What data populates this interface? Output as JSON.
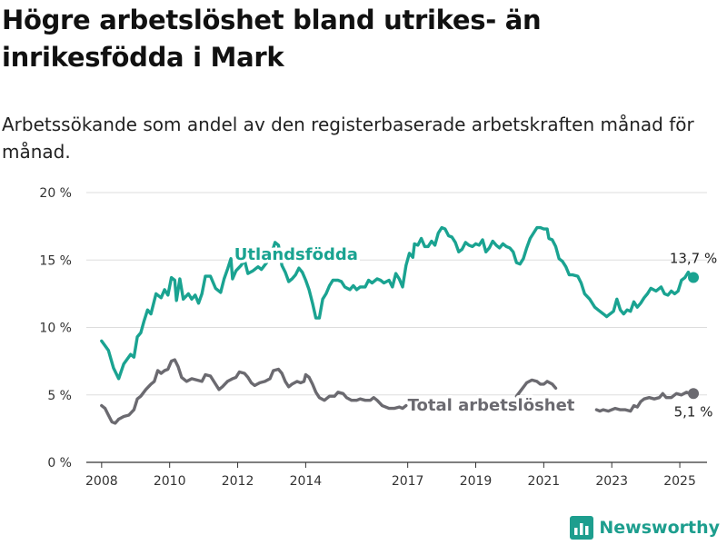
{
  "title": "Högre arbetslöshet bland utrikes- än inrikesfödda i Mark",
  "subtitle": "Arbetssökande som andel av den registerbaserade arbetskraften månad för månad.",
  "brand": "Newsworthy",
  "colors": {
    "utlandsfodda": "#1aa391",
    "total": "#6b6a70",
    "grid": "#dddddd"
  },
  "chart_data": {
    "type": "line",
    "ylim": [
      0,
      20
    ],
    "yticks": [
      {
        "value": 0,
        "label": "0 %"
      },
      {
        "value": 5,
        "label": "5 %"
      },
      {
        "value": 10,
        "label": "10 %"
      },
      {
        "value": 15,
        "label": "15 %"
      },
      {
        "value": 20,
        "label": "20 %"
      }
    ],
    "xticks": [
      {
        "value": 2008,
        "label": "2008"
      },
      {
        "value": 2010,
        "label": "2010"
      },
      {
        "value": 2012,
        "label": "2012"
      },
      {
        "value": 2014,
        "label": "2014"
      },
      {
        "value": 2017,
        "label": "2017"
      },
      {
        "value": 2019,
        "label": "2019"
      },
      {
        "value": 2021,
        "label": "2021"
      },
      {
        "value": 2023,
        "label": "2023"
      },
      {
        "value": 2025,
        "label": "2025"
      }
    ],
    "series": [
      {
        "name": "Utlandsfödda",
        "end_label": "13,7 %",
        "points": [
          [
            2008.0,
            9.0
          ],
          [
            2008.2,
            8.3
          ],
          [
            2008.35,
            7.0
          ],
          [
            2008.5,
            6.2
          ],
          [
            2008.65,
            7.3
          ],
          [
            2008.85,
            8.0
          ],
          [
            2008.95,
            7.8
          ],
          [
            2009.05,
            9.3
          ],
          [
            2009.15,
            9.6
          ],
          [
            2009.25,
            10.5
          ],
          [
            2009.35,
            11.3
          ],
          [
            2009.45,
            11.0
          ],
          [
            2009.6,
            12.5
          ],
          [
            2009.75,
            12.2
          ],
          [
            2009.85,
            12.8
          ],
          [
            2009.95,
            12.4
          ],
          [
            2010.05,
            13.7
          ],
          [
            2010.15,
            13.5
          ],
          [
            2010.2,
            12.0
          ],
          [
            2010.3,
            13.6
          ],
          [
            2010.4,
            12.1
          ],
          [
            2010.55,
            12.5
          ],
          [
            2010.65,
            12.1
          ],
          [
            2010.75,
            12.4
          ],
          [
            2010.85,
            11.8
          ],
          [
            2010.95,
            12.5
          ],
          [
            2011.05,
            13.8
          ],
          [
            2011.2,
            13.8
          ],
          [
            2011.35,
            12.9
          ],
          [
            2011.5,
            12.6
          ],
          [
            2011.6,
            13.6
          ],
          [
            2011.7,
            14.3
          ],
          [
            2011.8,
            15.1
          ],
          [
            2011.85,
            13.6
          ],
          [
            2011.95,
            14.2
          ],
          [
            2012.1,
            14.6
          ],
          [
            2012.2,
            15.0
          ],
          [
            2012.3,
            14.0
          ],
          [
            2012.45,
            14.2
          ],
          [
            2012.6,
            14.5
          ],
          [
            2012.7,
            14.3
          ],
          [
            2012.85,
            14.8
          ],
          [
            2013.0,
            15.5
          ],
          [
            2013.1,
            16.3
          ],
          [
            2013.2,
            16.1
          ],
          [
            2013.3,
            14.6
          ],
          [
            2013.4,
            14.1
          ],
          [
            2013.5,
            13.4
          ],
          [
            2013.6,
            13.6
          ],
          [
            2013.7,
            13.9
          ],
          [
            2013.8,
            14.4
          ],
          [
            2013.9,
            14.1
          ],
          [
            2014.0,
            13.5
          ],
          [
            2014.1,
            12.8
          ],
          [
            2014.2,
            11.8
          ],
          [
            2014.3,
            10.7
          ],
          [
            2014.4,
            10.7
          ],
          [
            2014.5,
            12.1
          ],
          [
            2014.6,
            12.5
          ],
          [
            2014.7,
            13.1
          ],
          [
            2014.8,
            13.5
          ],
          [
            2014.95,
            13.5
          ],
          [
            2015.05,
            13.4
          ],
          [
            2015.15,
            13.0
          ],
          [
            2015.3,
            12.8
          ],
          [
            2015.4,
            13.1
          ],
          [
            2015.5,
            12.8
          ],
          [
            2015.6,
            13.0
          ],
          [
            2015.75,
            13.0
          ],
          [
            2015.85,
            13.5
          ],
          [
            2015.95,
            13.3
          ],
          [
            2016.1,
            13.6
          ],
          [
            2016.2,
            13.5
          ],
          [
            2016.3,
            13.3
          ],
          [
            2016.45,
            13.5
          ],
          [
            2016.55,
            13.0
          ],
          [
            2016.65,
            14.0
          ],
          [
            2016.75,
            13.6
          ],
          [
            2016.85,
            13.0
          ],
          [
            2016.95,
            14.6
          ],
          [
            2017.05,
            15.5
          ],
          [
            2017.15,
            15.2
          ],
          [
            2017.2,
            16.2
          ],
          [
            2017.3,
            16.1
          ],
          [
            2017.4,
            16.6
          ],
          [
            2017.5,
            16.0
          ],
          [
            2017.6,
            16.0
          ],
          [
            2017.7,
            16.4
          ],
          [
            2017.8,
            16.1
          ],
          [
            2017.9,
            17.0
          ],
          [
            2018.0,
            17.4
          ],
          [
            2018.1,
            17.3
          ],
          [
            2018.2,
            16.8
          ],
          [
            2018.3,
            16.7
          ],
          [
            2018.4,
            16.3
          ],
          [
            2018.5,
            15.6
          ],
          [
            2018.6,
            15.8
          ],
          [
            2018.7,
            16.3
          ],
          [
            2018.8,
            16.1
          ],
          [
            2018.9,
            16.0
          ],
          [
            2019.0,
            16.2
          ],
          [
            2019.1,
            16.1
          ],
          [
            2019.2,
            16.5
          ],
          [
            2019.3,
            15.6
          ],
          [
            2019.4,
            15.9
          ],
          [
            2019.5,
            16.4
          ],
          [
            2019.6,
            16.1
          ],
          [
            2019.7,
            15.9
          ],
          [
            2019.8,
            16.2
          ],
          [
            2019.9,
            16.0
          ],
          [
            2020.0,
            15.9
          ],
          [
            2020.1,
            15.6
          ],
          [
            2020.2,
            14.8
          ],
          [
            2020.3,
            14.7
          ],
          [
            2020.4,
            15.1
          ],
          [
            2020.5,
            15.9
          ],
          [
            2020.6,
            16.6
          ],
          [
            2020.7,
            17.0
          ],
          [
            2020.8,
            17.4
          ],
          [
            2020.9,
            17.4
          ],
          [
            2021.0,
            17.3
          ],
          [
            2021.1,
            17.3
          ],
          [
            2021.15,
            16.6
          ],
          [
            2021.25,
            16.5
          ],
          [
            2021.35,
            16.0
          ],
          [
            2021.45,
            15.1
          ],
          [
            2021.55,
            14.9
          ],
          [
            2021.65,
            14.5
          ],
          [
            2021.75,
            13.9
          ],
          [
            2021.85,
            13.9
          ],
          [
            2022.0,
            13.8
          ],
          [
            2022.1,
            13.3
          ],
          [
            2022.2,
            12.5
          ],
          [
            2022.35,
            12.1
          ],
          [
            2022.5,
            11.5
          ],
          [
            2022.6,
            11.3
          ],
          [
            2022.75,
            11.0
          ],
          [
            2022.85,
            10.8
          ],
          [
            2022.95,
            11.0
          ],
          [
            2023.05,
            11.2
          ],
          [
            2023.15,
            12.1
          ],
          [
            2023.25,
            11.3
          ],
          [
            2023.35,
            11.0
          ],
          [
            2023.45,
            11.3
          ],
          [
            2023.55,
            11.2
          ],
          [
            2023.65,
            11.9
          ],
          [
            2023.75,
            11.5
          ],
          [
            2023.85,
            11.8
          ],
          [
            2023.95,
            12.2
          ],
          [
            2024.05,
            12.5
          ],
          [
            2024.15,
            12.9
          ],
          [
            2024.3,
            12.7
          ],
          [
            2024.45,
            13.0
          ],
          [
            2024.55,
            12.5
          ],
          [
            2024.65,
            12.4
          ],
          [
            2024.75,
            12.7
          ],
          [
            2024.85,
            12.5
          ],
          [
            2024.95,
            12.7
          ],
          [
            2025.05,
            13.5
          ],
          [
            2025.15,
            13.7
          ],
          [
            2025.25,
            14.1
          ],
          [
            2025.3,
            13.8
          ],
          [
            2025.4,
            13.7
          ]
        ]
      },
      {
        "name": "Total arbetslöshet",
        "end_label": "5,1 %",
        "points": [
          [
            2008.0,
            4.2
          ],
          [
            2008.1,
            4.0
          ],
          [
            2008.2,
            3.5
          ],
          [
            2008.3,
            3.0
          ],
          [
            2008.4,
            2.9
          ],
          [
            2008.5,
            3.2
          ],
          [
            2008.65,
            3.4
          ],
          [
            2008.8,
            3.5
          ],
          [
            2008.95,
            3.9
          ],
          [
            2009.05,
            4.7
          ],
          [
            2009.15,
            4.9
          ],
          [
            2009.3,
            5.4
          ],
          [
            2009.45,
            5.8
          ],
          [
            2009.55,
            6.0
          ],
          [
            2009.65,
            6.8
          ],
          [
            2009.75,
            6.6
          ],
          [
            2009.85,
            6.8
          ],
          [
            2009.95,
            6.9
          ],
          [
            2010.05,
            7.5
          ],
          [
            2010.15,
            7.6
          ],
          [
            2010.25,
            7.1
          ],
          [
            2010.35,
            6.3
          ],
          [
            2010.5,
            6.0
          ],
          [
            2010.65,
            6.2
          ],
          [
            2010.8,
            6.1
          ],
          [
            2010.95,
            6.0
          ],
          [
            2011.05,
            6.5
          ],
          [
            2011.2,
            6.4
          ],
          [
            2011.35,
            5.8
          ],
          [
            2011.45,
            5.4
          ],
          [
            2011.55,
            5.6
          ],
          [
            2011.7,
            6.0
          ],
          [
            2011.85,
            6.2
          ],
          [
            2011.95,
            6.3
          ],
          [
            2012.05,
            6.7
          ],
          [
            2012.2,
            6.6
          ],
          [
            2012.3,
            6.3
          ],
          [
            2012.4,
            5.9
          ],
          [
            2012.5,
            5.7
          ],
          [
            2012.65,
            5.9
          ],
          [
            2012.8,
            6.0
          ],
          [
            2012.95,
            6.2
          ],
          [
            2013.05,
            6.8
          ],
          [
            2013.2,
            6.9
          ],
          [
            2013.3,
            6.6
          ],
          [
            2013.4,
            6.0
          ],
          [
            2013.5,
            5.6
          ],
          [
            2013.6,
            5.8
          ],
          [
            2013.75,
            6.0
          ],
          [
            2013.85,
            5.9
          ],
          [
            2013.95,
            6.0
          ],
          [
            2014.0,
            6.5
          ],
          [
            2014.1,
            6.3
          ],
          [
            2014.2,
            5.8
          ],
          [
            2014.3,
            5.2
          ],
          [
            2014.4,
            4.8
          ],
          [
            2014.55,
            4.6
          ],
          [
            2014.7,
            4.9
          ],
          [
            2014.85,
            4.9
          ],
          [
            2014.95,
            5.2
          ],
          [
            2015.1,
            5.1
          ],
          [
            2015.2,
            4.8
          ],
          [
            2015.35,
            4.6
          ],
          [
            2015.5,
            4.6
          ],
          [
            2015.6,
            4.7
          ],
          [
            2015.75,
            4.6
          ],
          [
            2015.9,
            4.6
          ],
          [
            2016.0,
            4.8
          ],
          [
            2016.1,
            4.6
          ],
          [
            2016.25,
            4.2
          ],
          [
            2016.45,
            4.0
          ],
          [
            2016.6,
            4.0
          ],
          [
            2016.75,
            4.1
          ],
          [
            2016.85,
            4.0
          ],
          [
            2016.95,
            4.2
          ]
        ],
        "points2": [
          [
            2020.2,
            4.9
          ],
          [
            2020.35,
            5.4
          ],
          [
            2020.5,
            5.9
          ],
          [
            2020.65,
            6.1
          ],
          [
            2020.8,
            6.0
          ],
          [
            2020.9,
            5.8
          ],
          [
            2021.0,
            5.8
          ],
          [
            2021.1,
            6.0
          ],
          [
            2021.25,
            5.8
          ],
          [
            2021.35,
            5.5
          ]
        ],
        "points3": [
          [
            2022.55,
            3.9
          ],
          [
            2022.65,
            3.8
          ],
          [
            2022.75,
            3.9
          ],
          [
            2022.9,
            3.8
          ],
          [
            2023.0,
            3.9
          ],
          [
            2023.1,
            4.0
          ],
          [
            2023.25,
            3.9
          ],
          [
            2023.4,
            3.9
          ],
          [
            2023.55,
            3.8
          ],
          [
            2023.65,
            4.2
          ],
          [
            2023.75,
            4.1
          ],
          [
            2023.85,
            4.5
          ],
          [
            2023.95,
            4.7
          ],
          [
            2024.1,
            4.8
          ],
          [
            2024.25,
            4.7
          ],
          [
            2024.4,
            4.8
          ],
          [
            2024.5,
            5.1
          ],
          [
            2024.6,
            4.8
          ],
          [
            2024.75,
            4.8
          ],
          [
            2024.9,
            5.1
          ],
          [
            2025.05,
            5.0
          ],
          [
            2025.2,
            5.2
          ],
          [
            2025.3,
            5.1
          ],
          [
            2025.4,
            5.1
          ]
        ]
      }
    ],
    "label_positions": {
      "Utlandsfödda": [
        2011.9,
        15.3
      ],
      "Total arbetslöshet": [
        2017.0,
        4.1
      ]
    }
  }
}
